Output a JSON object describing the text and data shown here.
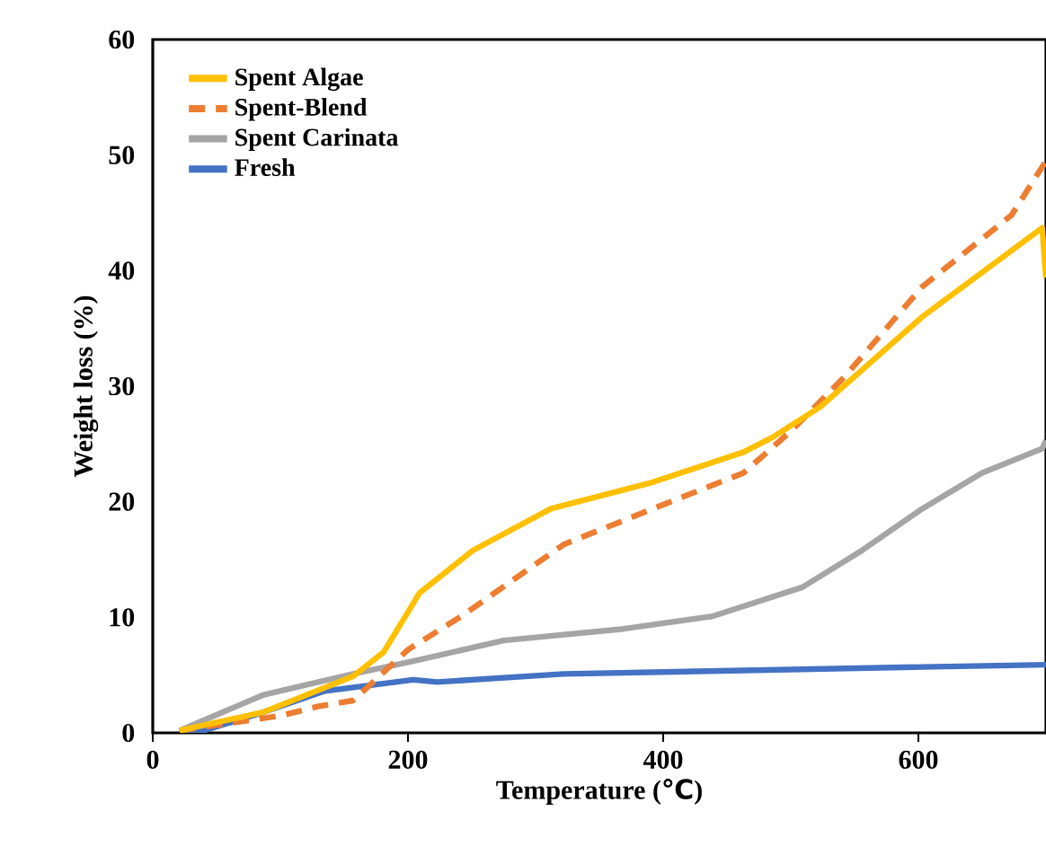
{
  "chart_data": {
    "type": "line",
    "xlabel": "Temperature (℃)",
    "ylabel": "Weight loss (%)",
    "xlim": [
      0,
      700
    ],
    "ylim": [
      0,
      60
    ],
    "xticks": [
      0,
      200,
      400,
      600
    ],
    "yticks": [
      0,
      10,
      20,
      30,
      40,
      50,
      60
    ],
    "grid": false,
    "legend": "top left",
    "series": [
      {
        "name": "Spent Algae",
        "color": "#ffc000",
        "line_style": "solid",
        "x": [
          21,
          87,
          157,
          181,
          209,
          251,
          312,
          392,
          463,
          486,
          523,
          603,
          697,
          700
        ],
        "values": [
          0.2,
          1.8,
          4.9,
          7,
          12.1,
          15.8,
          19.4,
          21.7,
          24.3,
          25.6,
          28.2,
          36,
          43.7,
          39.4
        ]
      },
      {
        "name": "Spent-Blend",
        "color": "#ed7d31",
        "line_style": "dashed",
        "x": [
          21,
          101,
          130,
          157,
          200,
          242,
          322,
          392,
          463,
          500,
          542,
          603,
          673,
          700
        ],
        "values": [
          0.2,
          1.5,
          2.3,
          2.8,
          7.2,
          10.1,
          16.3,
          19.4,
          22.5,
          26.1,
          30.8,
          38.6,
          44.8,
          49.5
        ]
      },
      {
        "name": "Spent Carinata",
        "color": "#a5a5a5",
        "line_style": "solid",
        "x": [
          21,
          87,
          157,
          204,
          275,
          369,
          439,
          509,
          556,
          603,
          650,
          697,
          700
        ],
        "values": [
          0.2,
          3.3,
          5.1,
          6.2,
          8,
          9,
          10.1,
          12.6,
          15.8,
          19.4,
          22.5,
          24.6,
          25.3
        ]
      },
      {
        "name": "Fresh",
        "color": "#4472c4",
        "line_style": "solid",
        "x": [
          21,
          40,
          87,
          134,
          204,
          223,
          322,
          463,
          603,
          700
        ],
        "values": [
          0.2,
          0.2,
          1.8,
          3.6,
          4.6,
          4.4,
          5.1,
          5.4,
          5.7,
          5.9
        ]
      }
    ]
  }
}
